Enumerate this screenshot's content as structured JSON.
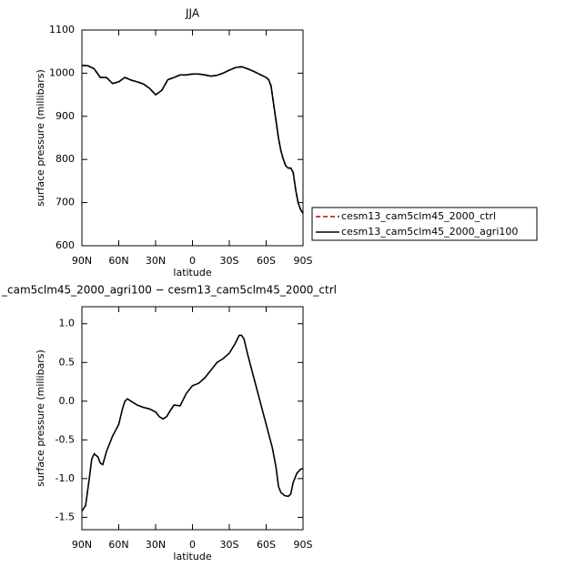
{
  "chart_data": [
    {
      "type": "line",
      "title": "JJA",
      "xlabel": "latitude",
      "ylabel": "surface pressure (millibars)",
      "x": [
        90,
        85,
        80,
        75,
        70,
        65,
        60,
        55,
        50,
        45,
        40,
        35,
        30,
        25,
        20,
        15,
        10,
        5,
        0,
        -5,
        -10,
        -15,
        -20,
        -25,
        -30,
        -35,
        -40,
        -45,
        -50,
        -55,
        -60,
        -62,
        -64,
        -66,
        -68,
        -70,
        -72,
        -74,
        -76,
        -78,
        -80,
        -82,
        -84,
        -86,
        -88,
        -90
      ],
      "series": [
        {
          "name": "cesm13_cam5clm45_2000_ctrl",
          "color": "#c00000",
          "style": "dashed",
          "values": [
            1018,
            1017,
            1010,
            990,
            990,
            976,
            980,
            990,
            984,
            980,
            975,
            965,
            950,
            960,
            985,
            990,
            996,
            996,
            998,
            998,
            996,
            993,
            995,
            1000,
            1007,
            1013,
            1015,
            1010,
            1004,
            997,
            990,
            985,
            970,
            930,
            890,
            850,
            820,
            800,
            785,
            780,
            780,
            770,
            730,
            700,
            684,
            675
          ]
        },
        {
          "name": "cesm13_cam5clm45_2000_agri100",
          "color": "#000000",
          "style": "solid",
          "values": [
            1018,
            1017,
            1010,
            990,
            990,
            976,
            980,
            990,
            984,
            980,
            975,
            965,
            950,
            960,
            985,
            990,
            996,
            996,
            998,
            998,
            996,
            993,
            995,
            1000,
            1007,
            1013,
            1015,
            1010,
            1004,
            997,
            990,
            985,
            970,
            930,
            890,
            850,
            820,
            800,
            785,
            780,
            780,
            770,
            730,
            700,
            684,
            675
          ]
        }
      ],
      "xlim": [
        90,
        -90
      ],
      "xticks": [
        {
          "value": 90,
          "label": "90N"
        },
        {
          "value": 60,
          "label": "60N"
        },
        {
          "value": 30,
          "label": "30N"
        },
        0,
        {
          "value": -30,
          "label": "30S"
        },
        {
          "value": -60,
          "label": "60S"
        },
        {
          "value": -90,
          "label": "90S"
        }
      ],
      "ylim": [
        600,
        1100
      ],
      "yticks": [
        600,
        700,
        800,
        900,
        1000,
        1100
      ],
      "legend": "outside-right"
    },
    {
      "type": "line",
      "title": "_cam5clm45_2000_agri100 − cesm13_cam5clm45_2000_ctrl",
      "xlabel": "latitude",
      "ylabel": "surface pressure (millibars)",
      "x": [
        90,
        87,
        84,
        82,
        80,
        77,
        75,
        73,
        70,
        65,
        60,
        57,
        55,
        53,
        50,
        45,
        40,
        35,
        30,
        27,
        24,
        21,
        18,
        15,
        10,
        5,
        0,
        -5,
        -10,
        -15,
        -20,
        -25,
        -30,
        -35,
        -38,
        -40,
        -42,
        -45,
        -50,
        -55,
        -60,
        -65,
        -68,
        -70,
        -72,
        -75,
        -78,
        -80,
        -82,
        -85,
        -88,
        -90
      ],
      "series": [
        {
          "color": "#000000",
          "style": "solid",
          "values": [
            -1.42,
            -1.35,
            -1.0,
            -0.75,
            -0.68,
            -0.72,
            -0.8,
            -0.82,
            -0.65,
            -0.45,
            -0.3,
            -0.1,
            0.0,
            0.03,
            0.0,
            -0.05,
            -0.08,
            -0.1,
            -0.14,
            -0.2,
            -0.23,
            -0.2,
            -0.12,
            -0.05,
            -0.06,
            0.1,
            0.2,
            0.23,
            0.3,
            0.4,
            0.5,
            0.55,
            0.62,
            0.75,
            0.85,
            0.85,
            0.8,
            0.6,
            0.3,
            0.0,
            -0.3,
            -0.6,
            -0.85,
            -1.1,
            -1.18,
            -1.22,
            -1.23,
            -1.2,
            -1.05,
            -0.93,
            -0.88,
            -0.87
          ]
        }
      ],
      "xlim": [
        90,
        -90
      ],
      "xticks": [
        {
          "value": 90,
          "label": "90N"
        },
        {
          "value": 60,
          "label": "60N"
        },
        {
          "value": 30,
          "label": "30N"
        },
        0,
        {
          "value": -30,
          "label": "30S"
        },
        {
          "value": -60,
          "label": "60S"
        },
        {
          "value": -90,
          "label": "90S"
        }
      ],
      "ylim": [
        -1.66,
        1.22
      ],
      "yticks": [
        {
          "value": -1.5,
          "label": "-1.5"
        },
        {
          "value": -1.0,
          "label": "-1.0"
        },
        {
          "value": -0.5,
          "label": "-0.5"
        },
        {
          "value": 0.0,
          "label": "0.0"
        },
        {
          "value": 0.5,
          "label": "0.5"
        },
        {
          "value": 1.0,
          "label": "1.0"
        }
      ]
    }
  ]
}
